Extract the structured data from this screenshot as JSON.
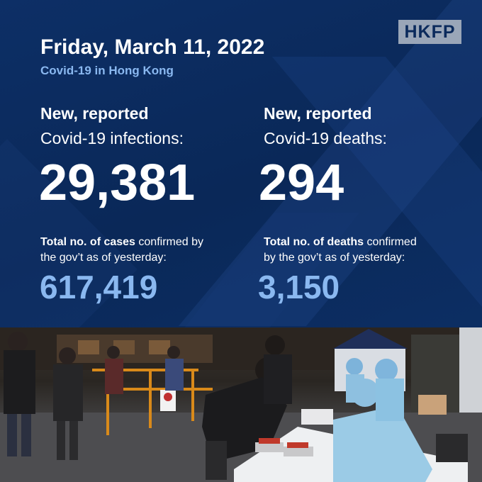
{
  "brand": {
    "logo_text": "HKFP"
  },
  "header": {
    "date": "Friday, March 11, 2022",
    "subtitle": "Covid-19 in Hong Kong"
  },
  "infections": {
    "lead": "New, reported",
    "label": "Covid-19 infections:",
    "value": "29,381",
    "total_bold": "Total no. of cases",
    "total_rest": " confirmed by",
    "total_line2": "the gov’t as of yesterday:",
    "total_value": "617,419"
  },
  "deaths": {
    "lead": "New, reported",
    "label": "Covid-19 deaths:",
    "value": "294",
    "total_bold": "Total no. of deaths",
    "total_rest": " confirmed",
    "total_line2": "by the gov’t as of yesterday:",
    "total_value": "3,150"
  },
  "colors": {
    "background": "#0b2a5c",
    "accent": "#8ab8f0",
    "text": "#ffffff"
  }
}
